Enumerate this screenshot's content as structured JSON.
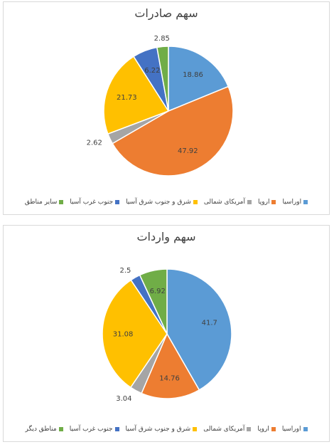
{
  "chart_data": [
    {
      "type": "pie",
      "title": "سهم صادرات",
      "categories": [
        "اوراسیا",
        "اروپا",
        "آمریکای شمالی",
        "شرق و جنوب شرق آسیا",
        "جنوب غرب آسیا",
        "سایر مناطق"
      ],
      "values": [
        18.86,
        47.92,
        2.62,
        21.73,
        6.22,
        2.85
      ],
      "colors": [
        "#5b9bd5",
        "#ed7d31",
        "#a5a5a5",
        "#ffc000",
        "#4472c4",
        "#70ad47"
      ],
      "legend_position": "bottom",
      "data_labels": true
    },
    {
      "type": "pie",
      "title": "سهم واردات",
      "categories": [
        "اوراسیا",
        "اروپا",
        "آمریکای شمالی",
        "شرق و جنوب شرق آسیا",
        "جنوب غرب آسیا",
        "مناطق دیگر"
      ],
      "values": [
        41.7,
        14.76,
        3.04,
        31.08,
        2.5,
        6.92
      ],
      "colors": [
        "#5b9bd5",
        "#ed7d31",
        "#a5a5a5",
        "#ffc000",
        "#4472c4",
        "#70ad47"
      ],
      "legend_position": "bottom",
      "data_labels": true
    }
  ]
}
